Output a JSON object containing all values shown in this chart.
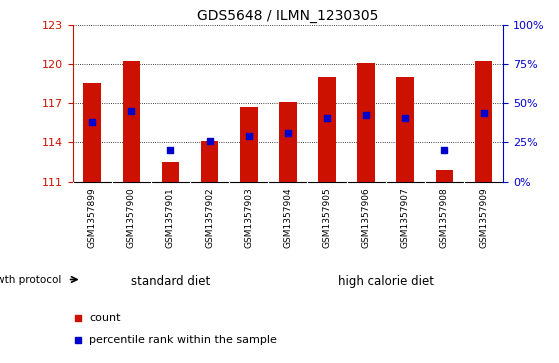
{
  "title": "GDS5648 / ILMN_1230305",
  "samples": [
    "GSM1357899",
    "GSM1357900",
    "GSM1357901",
    "GSM1357902",
    "GSM1357903",
    "GSM1357904",
    "GSM1357905",
    "GSM1357906",
    "GSM1357907",
    "GSM1357908",
    "GSM1357909"
  ],
  "bar_tops": [
    118.6,
    120.3,
    112.5,
    114.1,
    116.7,
    117.1,
    119.0,
    120.1,
    119.0,
    111.9,
    120.3
  ],
  "percentile_values": [
    115.6,
    116.4,
    113.4,
    114.1,
    114.5,
    114.7,
    115.9,
    116.1,
    115.9,
    113.4,
    116.3
  ],
  "bar_bottom": 111,
  "ylim_left": [
    111,
    123
  ],
  "ylim_right": [
    0,
    100
  ],
  "yticks_left": [
    111,
    114,
    117,
    120,
    123
  ],
  "yticks_right": [
    0,
    25,
    50,
    75,
    100
  ],
  "groups": [
    {
      "label": "standard diet",
      "start": 0,
      "end": 4
    },
    {
      "label": "high calorie diet",
      "start": 5,
      "end": 10
    }
  ],
  "bar_color": "#cc1100",
  "square_color": "#0000cc",
  "group_color": "#77dd77",
  "group_label_color": "#000000",
  "left_tick_color": "#cc1100",
  "right_tick_color": "#0000cc",
  "background_color": "#ffffff",
  "tick_bg_color": "#cccccc",
  "grid_color": "#000000",
  "title_color": "#000000",
  "bar_width": 0.45,
  "square_size": 22,
  "legend_items": [
    "count",
    "percentile rank within the sample"
  ],
  "legend_colors": [
    "#cc1100",
    "#0000cc"
  ]
}
